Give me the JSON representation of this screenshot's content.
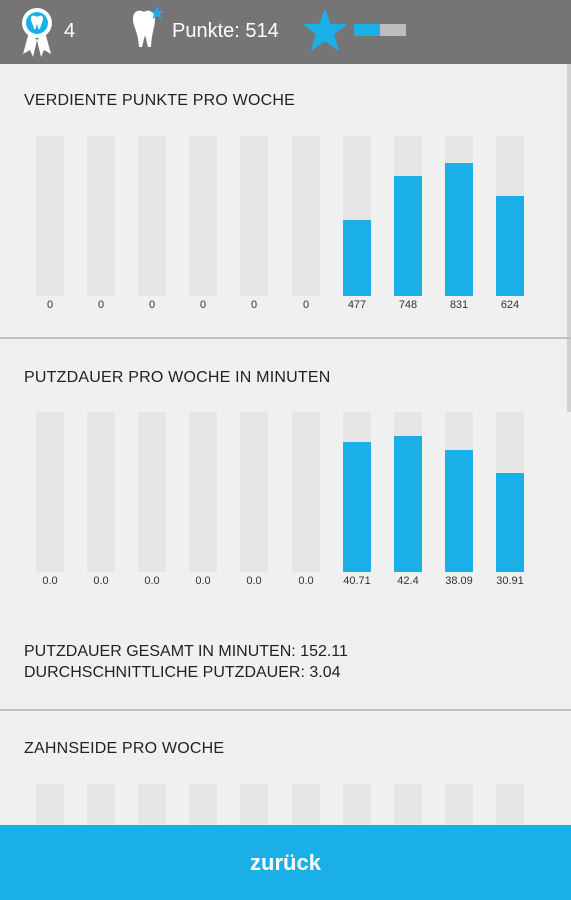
{
  "header": {
    "award_count": "4",
    "points_label": "Punkte: 514",
    "level_progress": 0.5,
    "icons": [
      "award-ribbon-icon",
      "tooth-star-icon",
      "star-icon"
    ],
    "accent_color": "#1aafe6"
  },
  "sections": [
    {
      "title": "VERDIENTE PUNKTE PRO WOCHE",
      "chart_data": {
        "type": "bar",
        "categories": [
          "",
          "",
          "",
          "",
          "",
          "",
          "",
          "",
          "",
          ""
        ],
        "values": [
          0,
          0,
          0,
          0,
          0,
          0,
          477,
          748,
          831,
          624
        ],
        "labels": [
          "0",
          "0",
          "0",
          "0",
          "0",
          "0",
          "477",
          "748",
          "831",
          "624"
        ],
        "ylim": [
          0,
          1000
        ]
      }
    },
    {
      "title": "PUTZDAUER PRO WOCHE IN MINUTEN",
      "chart_data": {
        "type": "bar",
        "categories": [
          "",
          "",
          "",
          "",
          "",
          "",
          "",
          "",
          "",
          ""
        ],
        "values": [
          0.0,
          0.0,
          0.0,
          0.0,
          0.0,
          0.0,
          40.71,
          42.4,
          38.09,
          30.91
        ],
        "labels": [
          "0.0",
          "0.0",
          "0.0",
          "0.0",
          "0.0",
          "0.0",
          "40.71",
          "42.4",
          "38.09",
          "30.91"
        ],
        "ylim": [
          0,
          50
        ]
      }
    },
    {
      "title": "ZAHNSEIDE PRO WOCHE",
      "chart_data": {
        "type": "bar",
        "categories": [
          "",
          "",
          "",
          "",
          "",
          "",
          "",
          "",
          "",
          ""
        ],
        "values": [
          0,
          0,
          0,
          0,
          0,
          0,
          0,
          0,
          0,
          0
        ],
        "ylim": [
          0,
          10
        ]
      }
    }
  ],
  "summary": {
    "total_line": "PUTZDAUER GESAMT IN MINUTEN: 152.11",
    "average_line": "DURCHSCHNITTLICHE PUTZDAUER: 3.04"
  },
  "footer": {
    "back_label": "zurück"
  }
}
